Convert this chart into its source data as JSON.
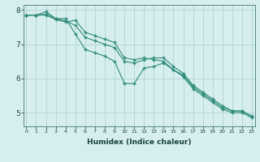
{
  "xlabel": "Humidex (Indice chaleur)",
  "x": [
    0,
    1,
    2,
    3,
    4,
    5,
    6,
    7,
    8,
    9,
    10,
    11,
    12,
    13,
    14,
    15,
    16,
    17,
    18,
    19,
    20,
    21,
    22,
    23
  ],
  "series1": [
    7.85,
    7.85,
    7.95,
    7.75,
    7.75,
    7.3,
    6.85,
    6.75,
    6.65,
    6.5,
    5.85,
    5.85,
    6.3,
    6.35,
    6.45,
    6.25,
    6.1,
    5.75,
    5.55,
    5.35,
    5.15,
    5.05,
    5.05,
    4.9
  ],
  "series2": [
    7.85,
    7.85,
    7.88,
    7.75,
    7.68,
    7.55,
    7.2,
    7.1,
    7.0,
    6.9,
    6.5,
    6.45,
    6.55,
    6.6,
    6.6,
    6.35,
    6.15,
    5.8,
    5.6,
    5.4,
    5.2,
    5.05,
    5.05,
    4.88
  ],
  "series3": [
    7.85,
    7.85,
    7.85,
    7.72,
    7.65,
    7.7,
    7.35,
    7.25,
    7.15,
    7.05,
    6.6,
    6.55,
    6.6,
    6.55,
    6.5,
    6.25,
    6.05,
    5.7,
    5.5,
    5.3,
    5.1,
    5.0,
    5.0,
    4.85
  ],
  "line_color": "#2e8b7a",
  "bg_color": "#d6eeee",
  "grid_color": "#aed4d4",
  "ylim": [
    4.6,
    8.15
  ],
  "xlim": [
    -0.3,
    23.3
  ],
  "yticks": [
    5,
    6,
    7,
    8
  ],
  "xticks": [
    0,
    1,
    2,
    3,
    4,
    5,
    6,
    7,
    8,
    9,
    10,
    11,
    12,
    13,
    14,
    15,
    16,
    17,
    18,
    19,
    20,
    21,
    22,
    23
  ]
}
